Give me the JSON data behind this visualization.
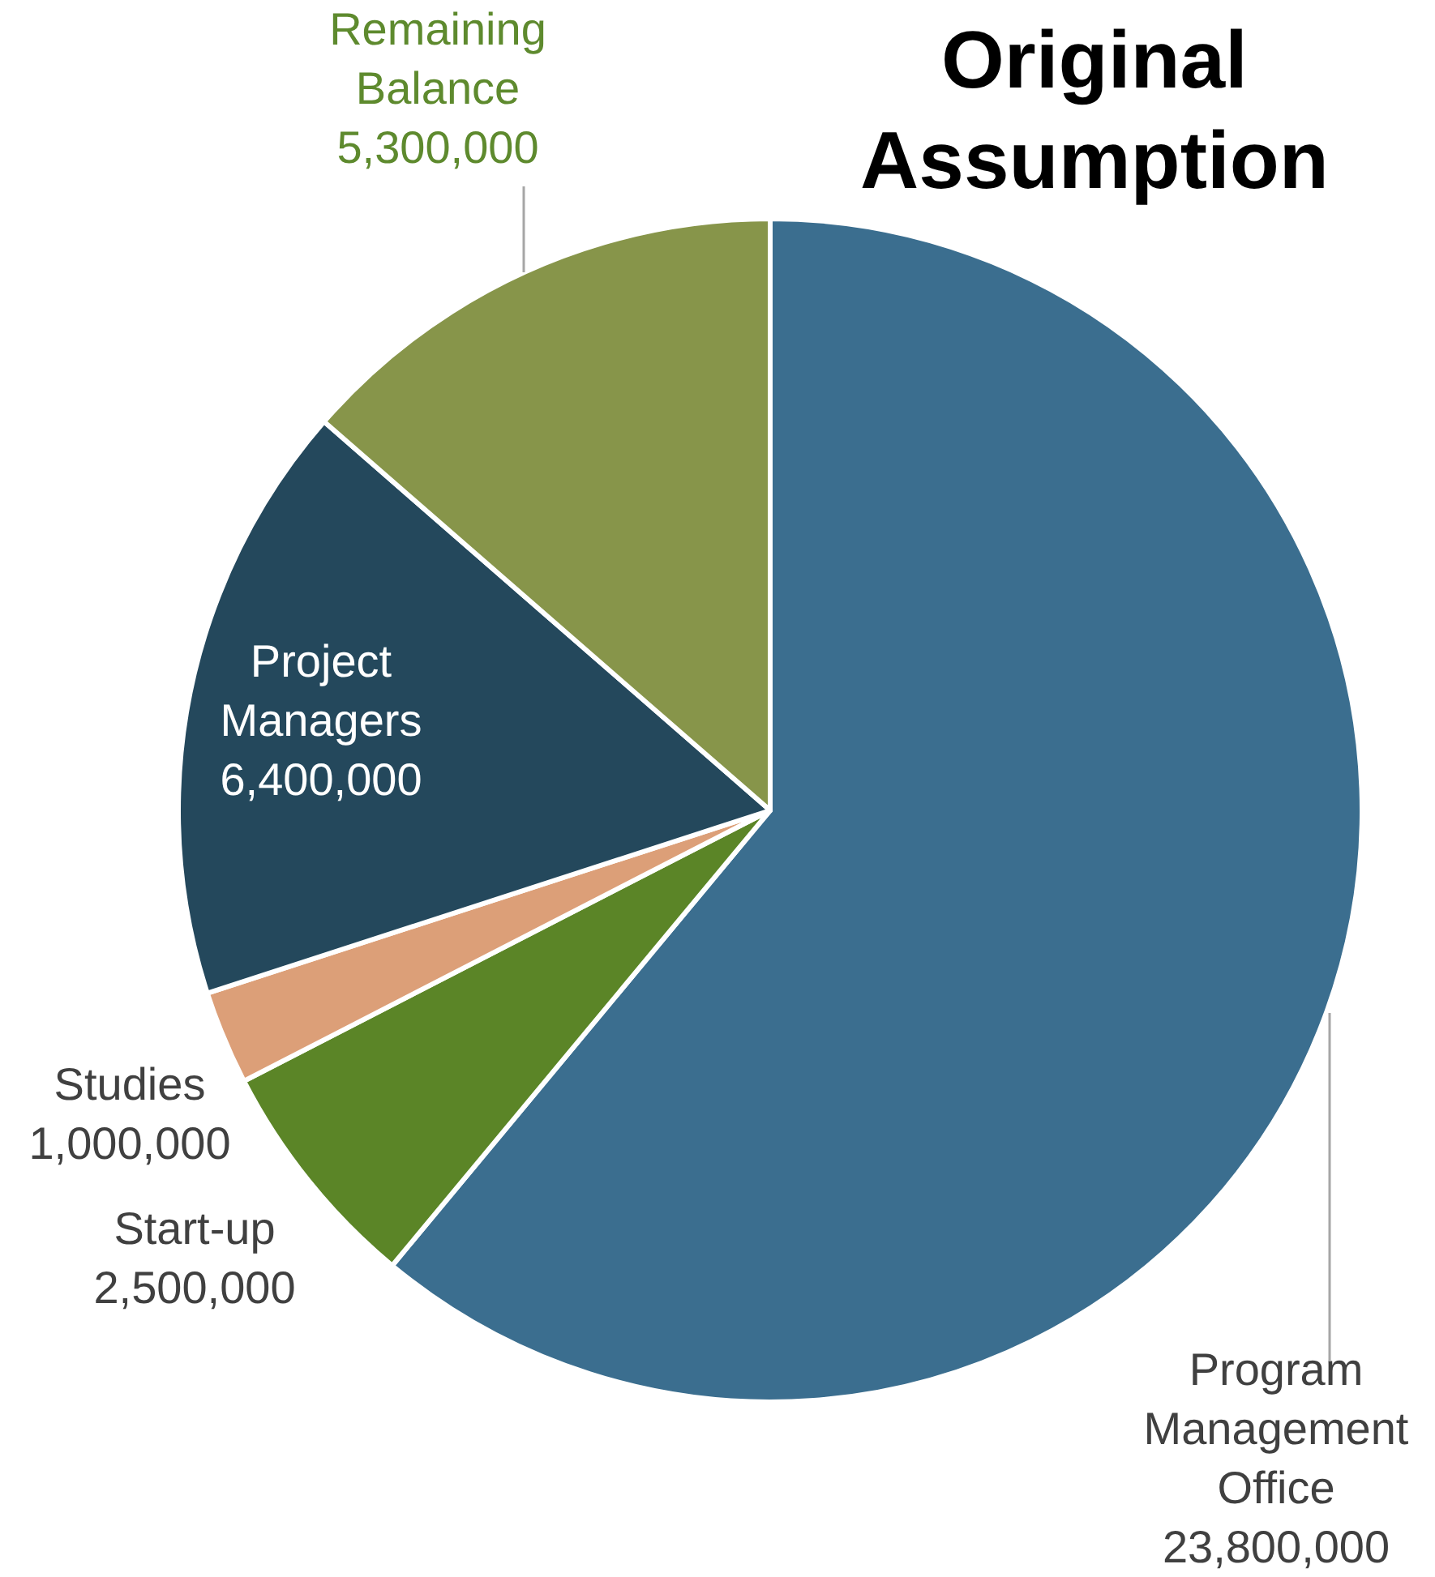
{
  "chart_data": {
    "type": "pie",
    "title": "Original Assumption",
    "categories": [
      "Program Management Office",
      "Start-up",
      "Studies",
      "Project Managers",
      "Remaining Balance"
    ],
    "values": [
      23800000,
      2500000,
      1000000,
      6400000,
      5300000
    ],
    "colors": [
      "#3b6e8f",
      "#5b8527",
      "#dc9f78",
      "#24485c",
      "#87954a"
    ],
    "value_labels": [
      "23,800,000",
      "2,500,000",
      "1,000,000",
      "6,400,000",
      "5,300,000"
    ],
    "legend": false
  }
}
